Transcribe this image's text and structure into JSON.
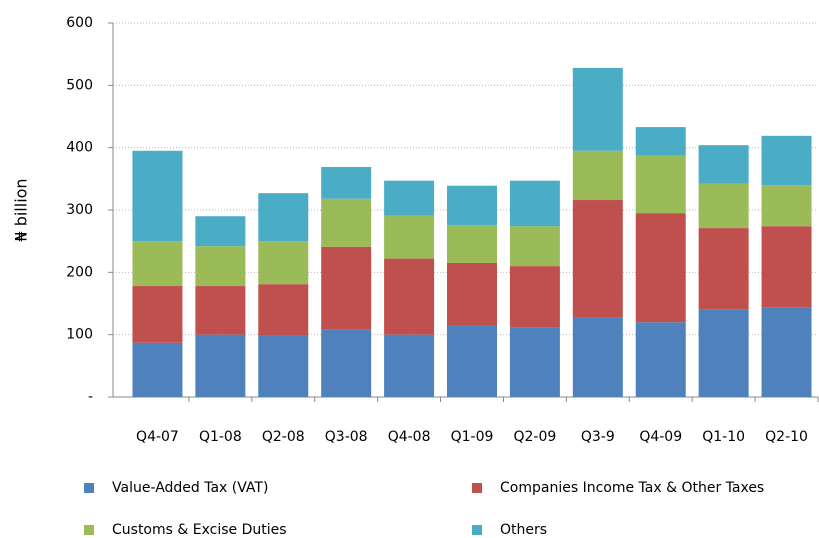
{
  "chart_data": {
    "type": "stacked_bar",
    "y_label": "₦ billion",
    "categories": [
      "Q4-07",
      "Q1-08",
      "Q2-08",
      "Q3-08",
      "Q4-08",
      "Q1-09",
      "Q2-09",
      "Q3-9",
      "Q4-09",
      "Q1-10",
      "Q2-10"
    ],
    "series": [
      {
        "name": "Value-Added Tax (VAT)",
        "color": "#4f81bd",
        "values": [
          87,
          100,
          98,
          108,
          100,
          114,
          111,
          127,
          120,
          140,
          144
        ]
      },
      {
        "name": "Companies Income Tax & Other Taxes",
        "color": "#c0504d",
        "values": [
          91,
          78,
          83,
          133,
          122,
          101,
          99,
          189,
          175,
          131,
          130
        ]
      },
      {
        "name": "Customs & Excise Duties",
        "color": "#9bbb59",
        "values": [
          72,
          64,
          69,
          77,
          69,
          61,
          64,
          79,
          92,
          71,
          66
        ]
      },
      {
        "name": "Others",
        "color": "#4bacc6",
        "values": [
          145,
          48,
          77,
          51,
          56,
          63,
          73,
          133,
          46,
          62,
          79
        ]
      }
    ],
    "ylim": [
      0,
      600
    ],
    "yticks": [
      {
        "value": 0,
        "label": "-"
      },
      100,
      200,
      300,
      400,
      500,
      600
    ],
    "grid": true
  }
}
